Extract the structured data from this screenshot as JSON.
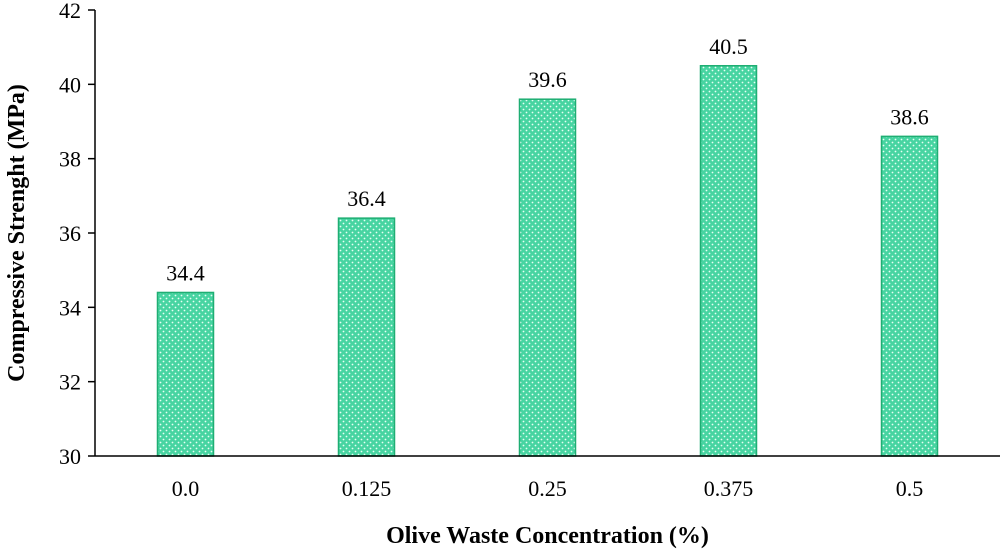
{
  "chart_data": {
    "type": "bar",
    "title": "",
    "xlabel": "Olive Waste Concentration (%)",
    "ylabel": "Compressive Strenght (MPa)",
    "categories": [
      "0.0",
      "0.125",
      "0.25",
      "0.375",
      "0.5"
    ],
    "values": [
      34.4,
      36.4,
      39.6,
      40.5,
      38.6
    ],
    "data_labels": [
      "34.4",
      "36.4",
      "39.6",
      "40.5",
      "38.6"
    ],
    "ylim": [
      30,
      42
    ],
    "yticks": [
      30,
      32,
      34,
      36,
      38,
      40,
      42
    ],
    "grid": false,
    "legend": "none",
    "bar_fill": "#3ecf9a",
    "bar_edge": "#1fae73"
  }
}
